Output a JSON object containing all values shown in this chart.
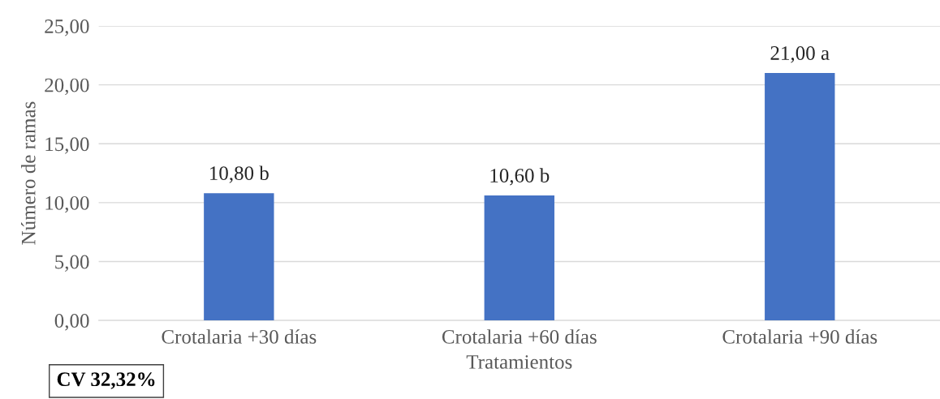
{
  "chart_data": {
    "type": "bar",
    "xlabel": "Tratamientos",
    "ylabel": "Número de ramas",
    "categories": [
      "Crotalaria +30 días",
      "Crotalaria +60 días",
      "Crotalaria +90 días"
    ],
    "values": [
      10.8,
      10.6,
      21.0
    ],
    "color": "#4472c4",
    "value_labels": [
      "10,80 b",
      "10,60 b",
      "21,00 a"
    ],
    "ylim": [
      0,
      25
    ],
    "yticks": [
      {
        "value": 0,
        "label": "0,00"
      },
      {
        "value": 5,
        "label": "5,00"
      },
      {
        "value": 10,
        "label": "10,00"
      },
      {
        "value": 15,
        "label": "15,00"
      },
      {
        "value": 20,
        "label": "20,00"
      },
      {
        "value": 25,
        "label": "25,00"
      }
    ],
    "grid": "y",
    "legend": false,
    "annotations": [
      "CV 32,32%"
    ]
  }
}
